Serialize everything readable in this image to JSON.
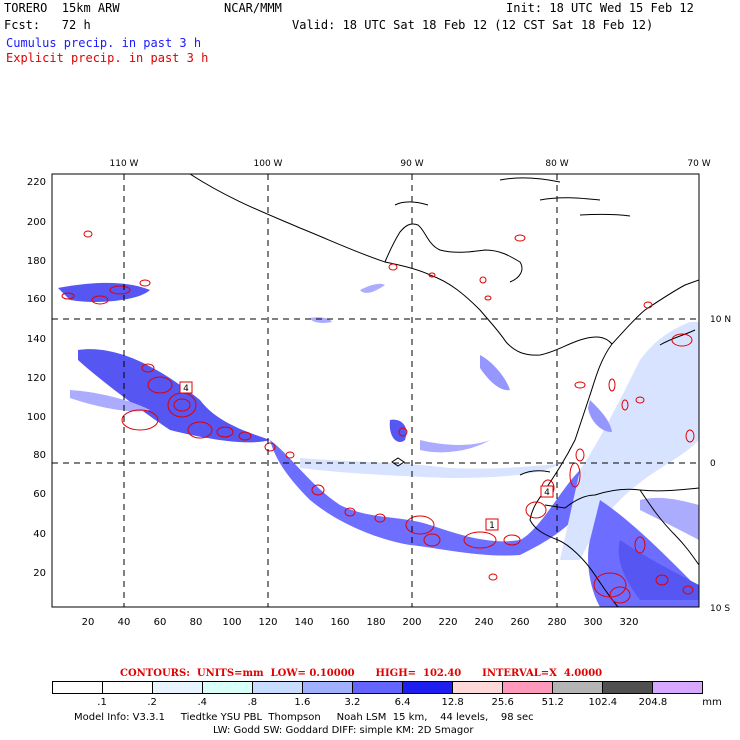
{
  "header": {
    "model": "TORERO  15km ARW",
    "center": "NCAR/MMM",
    "init": "Init: 18 UTC Wed 15 Feb 12",
    "fcst": "Fcst:   72 h",
    "valid": "Valid: 18 UTC Sat 18 Feb 12 (12 CST Sat 18 Feb 12)",
    "line_cumulus": "Cumulus precip. in past 3 h",
    "line_explicit": "Explicit precip. in past 3 h"
  },
  "map": {
    "lon_labels": [
      "110 W",
      "100 W",
      "90 W",
      "80 W",
      "70 W"
    ],
    "lat_labels": [
      "10 N",
      "0",
      "10 S"
    ],
    "y_ticks": [
      "220",
      "200",
      "180",
      "160",
      "140",
      "120",
      "100",
      "80",
      "60",
      "40",
      "20"
    ],
    "x_ticks": [
      "20",
      "40",
      "60",
      "80",
      "100",
      "120",
      "140",
      "160",
      "180",
      "200",
      "220",
      "240",
      "260",
      "280",
      "300",
      "320"
    ],
    "contour_labels": [
      "4",
      "1",
      "4"
    ],
    "colors": {
      "coast": "#000000",
      "grid": "#000000",
      "contour": "#e00000",
      "shade_light": "#c8d8ff",
      "shade_mid": "#6a6aff",
      "shade_dark": "#1010ee"
    }
  },
  "legend": {
    "contours_text": "CONTOURS:  UNITS=mm  LOW= 0.10000      HIGH=  102.40      INTERVAL=X  4.0000",
    "bins": [
      ".1",
      ".2",
      ".4",
      ".8",
      "1.6",
      "3.2",
      "6.4",
      "12.8",
      "25.6",
      "51.2",
      "102.4",
      "204.8"
    ],
    "units": "mm",
    "colors": [
      "#ffffff",
      "#ffffff",
      "#e8f4ff",
      "#d8fff8",
      "#c8dcff",
      "#a0b0ff",
      "#6464ff",
      "#1e1eee",
      "#ffd8d8",
      "#ff99bb",
      "#b4b4b4",
      "#505050",
      "#d8a8ff"
    ]
  },
  "footer": {
    "line1": "Model Info: V3.3.1     Tiedtke YSU PBL  Thompson     Noah LSM  15 km,    44 levels,    98 sec",
    "line2": "LW: Godd SW: Goddard DIFF: simple KM: 2D Smagor"
  }
}
